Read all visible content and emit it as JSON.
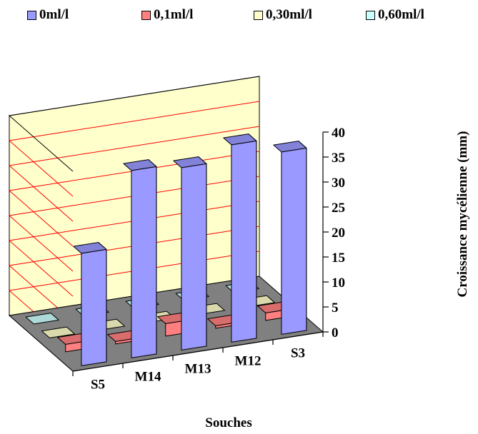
{
  "chart_data": {
    "type": "bar",
    "style": "3d-clustered-depth",
    "categories": [
      "S5",
      "M14",
      "M13",
      "M12",
      "S3"
    ],
    "series": [
      {
        "name": "0ml/l",
        "values": [
          22.5,
          37.5,
          36.5,
          39.5,
          36.5
        ],
        "color": "#9999ff"
      },
      {
        "name": "0,1ml/l",
        "values": [
          1.5,
          0.5,
          2.5,
          0.5,
          1.5
        ],
        "color": "#ff8080"
      },
      {
        "name": "0,30ml/l",
        "values": [
          0,
          0,
          0,
          0,
          0
        ],
        "color": "#ffffcc"
      },
      {
        "name": "0,60ml/l",
        "values": [
          0,
          0,
          0,
          0,
          0
        ],
        "color": "#ccffff"
      }
    ],
    "xlabel": "Souches",
    "ylabel": "Croissance mycélienne (mm)",
    "ylim": [
      0,
      40
    ],
    "yticks": [
      0,
      5,
      10,
      15,
      20,
      25,
      30,
      35,
      40
    ],
    "grid": true,
    "gridline_color": "#ff0000",
    "wall_color": "#ffffcc",
    "floor_color": "#808080",
    "legend_position": "top"
  }
}
